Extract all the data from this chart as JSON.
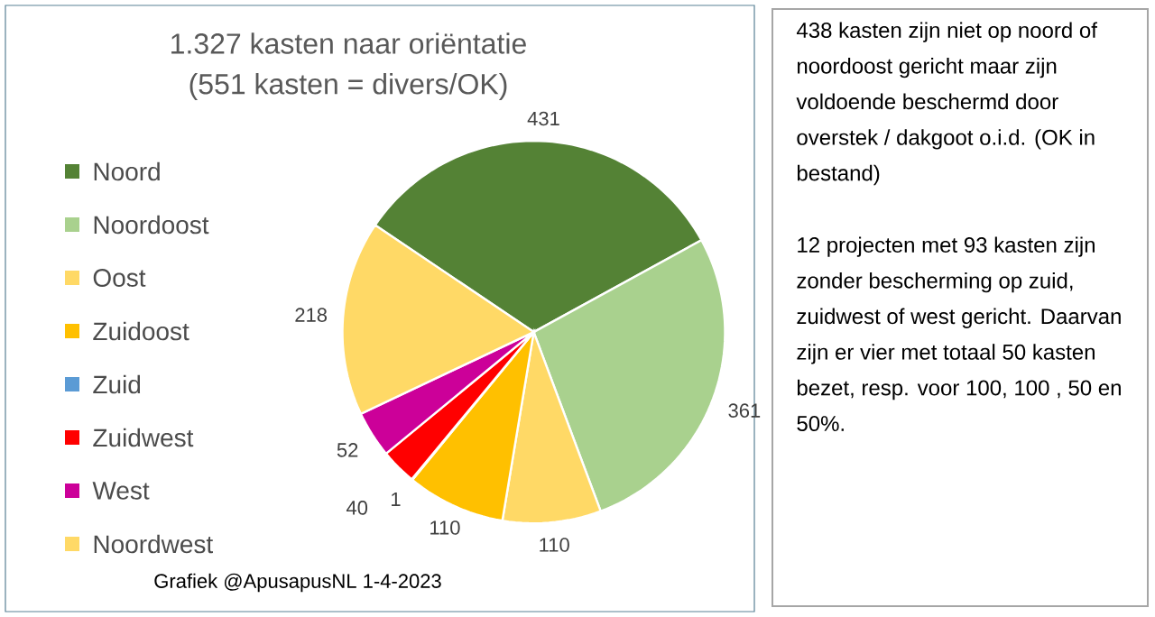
{
  "chart_data": {
    "type": "pie",
    "title": "1.327 kasten  naar oriëntatie",
    "subtitle": "(551 kasten = divers/OK)",
    "categories": [
      "Noord",
      "Noordoost",
      "Oost",
      "Zuidoost",
      "Zuid",
      "Zuidwest",
      "West",
      "Noordwest"
    ],
    "values": [
      431,
      361,
      110,
      110,
      1,
      40,
      52,
      218
    ],
    "colors": [
      "#548235",
      "#a9d18e",
      "#ffd966",
      "#ffc000",
      "#5b9bd5",
      "#ff0000",
      "#cc0099",
      "#ffd966"
    ],
    "data_labels": true,
    "legend": "left",
    "annotations": [
      "Grafiek @ApusapusNL 1-4-2023",
      "438 kasten zijn niet op noord of noordoost gericht maar zijn voldoende beschermd door overstek / dakgoot o.i.d. (OK in bestand)",
      "12 projecten met 93 kasten zijn zonder bescherming op zuid, zuidwest of west gericht. Daarvan zijn er vier met totaal 50 kasten bezet, resp. voor 100, 100 , 50 en 50%."
    ]
  }
}
